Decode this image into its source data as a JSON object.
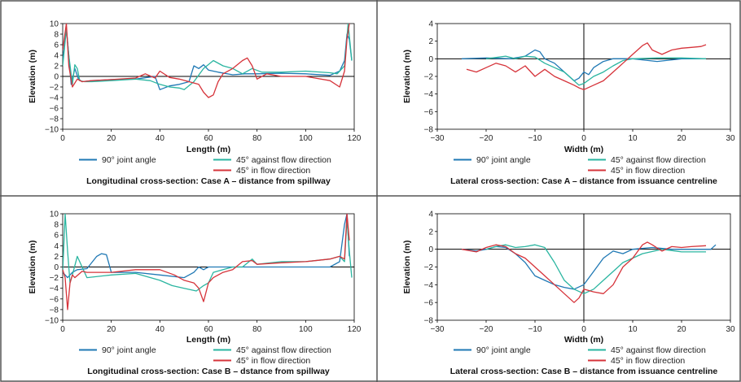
{
  "colors": {
    "series_90": "#1f78b4",
    "series_45_against": "#2ab5a0",
    "series_45_in": "#d6333a",
    "axis": "#000000",
    "frame": "#555555"
  },
  "legend_labels": [
    "90° joint angle",
    "45° against flow direction",
    "45° in flow direction"
  ],
  "chart_data": [
    {
      "type": "line",
      "title": "Longitudinal cross-section: Case A – distance from spillway",
      "xlabel": "Length (m)",
      "ylabel": "Elevation (m)",
      "xlim": [
        0,
        120
      ],
      "ylim": [
        -10,
        10
      ],
      "xticks": [
        0,
        20,
        40,
        60,
        80,
        100,
        120
      ],
      "yticks": [
        -10,
        -8,
        -6,
        -4,
        -2,
        0,
        2,
        4,
        6,
        8,
        10
      ],
      "legend": "bottom",
      "series": [
        {
          "name": "90° joint angle",
          "color": "#1f78b4",
          "x": [
            0,
            1.5,
            2.5,
            3.5,
            5,
            6.5,
            8,
            12,
            20,
            30,
            38,
            40,
            44,
            48,
            52,
            54,
            56,
            58,
            60,
            64,
            70,
            75,
            80,
            90,
            100,
            110,
            114,
            116,
            117,
            118,
            119
          ],
          "y": [
            3,
            9,
            4,
            -1.5,
            1.5,
            -0.5,
            -1,
            -0.8,
            -0.6,
            -0.5,
            0,
            -2.5,
            -1.8,
            -1.5,
            -1,
            2,
            1.5,
            2.2,
            1.2,
            0.8,
            0.3,
            0.5,
            0.5,
            0.6,
            0.5,
            0.2,
            1,
            3,
            8,
            7,
            3
          ]
        },
        {
          "name": "45° against flow direction",
          "color": "#2ab5a0",
          "x": [
            0,
            1.5,
            2.5,
            4,
            5,
            6,
            7,
            9,
            12,
            20,
            30,
            36,
            40,
            44,
            48,
            50,
            54,
            58,
            62,
            66,
            70,
            74,
            78,
            82,
            90,
            100,
            110,
            113,
            116,
            117.5,
            119
          ],
          "y": [
            2,
            9,
            4,
            -1.5,
            2.2,
            1.5,
            -0.8,
            -1,
            -1,
            -0.8,
            -0.5,
            -0.8,
            -1.5,
            -2,
            -2.2,
            -2.5,
            -1,
            1.5,
            3,
            2,
            1.5,
            0.5,
            1.5,
            0.8,
            0.8,
            1,
            0.7,
            0.5,
            2,
            10,
            3
          ]
        },
        {
          "name": "45° in flow direction",
          "color": "#d6333a",
          "x": [
            0,
            1.5,
            2.5,
            4,
            6,
            8,
            12,
            20,
            30,
            34,
            38,
            40,
            44,
            48,
            52,
            56,
            58,
            60,
            62,
            64,
            66,
            70,
            74,
            76,
            78,
            80,
            84,
            90,
            100,
            110,
            114,
            116,
            117,
            118
          ],
          "y": [
            5,
            10,
            2,
            -2,
            -0.5,
            -1,
            -0.8,
            -0.6,
            -0.3,
            0.5,
            -0.3,
            1,
            -0.2,
            -0.5,
            -1,
            -1.5,
            -3,
            -4,
            -3.5,
            -1,
            0.5,
            1.5,
            3,
            3.5,
            2,
            -0.5,
            0.5,
            0,
            0,
            -0.8,
            -2,
            1,
            7,
            10
          ]
        }
      ]
    },
    {
      "type": "line",
      "title": "Lateral cross-section: Case A – distance from issuance centreline",
      "xlabel": "Width (m)",
      "ylabel": "Elevation (m)",
      "xlim": [
        -30,
        30
      ],
      "ylim": [
        -8,
        4
      ],
      "xticks": [
        -30,
        -20,
        -10,
        0,
        10,
        20,
        30
      ],
      "yticks": [
        -8,
        -6,
        -4,
        -2,
        0,
        2,
        4
      ],
      "legend": "bottom",
      "series": [
        {
          "name": "90° joint angle",
          "color": "#1f78b4",
          "x": [
            -25,
            -20,
            -15,
            -12,
            -10,
            -9,
            -8,
            -6,
            -4,
            -2,
            -1,
            0,
            1,
            2,
            4,
            6,
            8,
            10,
            15,
            20,
            25
          ],
          "y": [
            0,
            0.1,
            0,
            0.3,
            1,
            0.8,
            0,
            -0.5,
            -1.5,
            -2.5,
            -2.2,
            -1.5,
            -1.8,
            -1,
            -0.3,
            0,
            0,
            0,
            -0.3,
            0,
            0
          ]
        },
        {
          "name": "45° against flow direction",
          "color": "#2ab5a0",
          "x": [
            -20,
            -16,
            -14,
            -12,
            -10,
            -8,
            -6,
            -4,
            -2,
            -1,
            0,
            2,
            4,
            6,
            8,
            10,
            15,
            20,
            25
          ],
          "y": [
            0,
            0.3,
            0,
            0.3,
            0.2,
            -0.5,
            -1,
            -1.5,
            -2.5,
            -3,
            -2.8,
            -2,
            -1.5,
            -0.8,
            -0.2,
            0,
            0.1,
            0.1,
            0
          ]
        },
        {
          "name": "45° in flow direction",
          "color": "#d6333a",
          "x": [
            -24,
            -22,
            -20,
            -18,
            -16,
            -14,
            -12,
            -10,
            -8,
            -6,
            -4,
            -2,
            -1,
            0,
            2,
            4,
            6,
            8,
            10,
            12,
            13,
            14,
            16,
            18,
            20,
            22,
            24,
            25
          ],
          "y": [
            -1.2,
            -1.5,
            -1,
            -0.5,
            -0.8,
            -1.5,
            -0.8,
            -2,
            -1.2,
            -2,
            -2.5,
            -3,
            -3.3,
            -3.5,
            -3,
            -2.5,
            -1.5,
            -0.5,
            0.5,
            1.5,
            1.8,
            1,
            0.5,
            1,
            1.2,
            1.3,
            1.4,
            1.6
          ]
        }
      ]
    },
    {
      "type": "line",
      "title": "Longitudinal cross-section: Case B – dstance from spillway",
      "xlabel": "Length (m)",
      "ylabel": "Elevation (m)",
      "xlim": [
        0,
        120
      ],
      "ylim": [
        -10,
        10
      ],
      "xticks": [
        0,
        20,
        40,
        60,
        80,
        100,
        120
      ],
      "yticks": [
        -10,
        -8,
        -6,
        -4,
        -2,
        0,
        2,
        4,
        6,
        8,
        10
      ],
      "legend": "bottom",
      "series": [
        {
          "name": "90° joint angle",
          "color": "#1f78b4",
          "x": [
            0,
            2,
            4,
            6,
            10,
            14,
            16,
            18,
            20,
            30,
            40,
            50,
            54,
            56,
            58,
            60,
            70,
            80,
            90,
            100,
            110,
            114,
            116,
            117,
            118
          ],
          "y": [
            -1,
            -2,
            -1,
            -0.5,
            -0.3,
            2,
            2.5,
            2.3,
            -1,
            -1,
            -1.5,
            -2,
            -1,
            0,
            -0.5,
            0,
            0,
            0,
            0,
            0,
            0,
            1,
            8,
            10,
            2
          ]
        },
        {
          "name": "45° against flow direction",
          "color": "#2ab5a0",
          "x": [
            0,
            1,
            2,
            3,
            4,
            6,
            10,
            20,
            30,
            40,
            45,
            50,
            55,
            58,
            60,
            62,
            66,
            70,
            74,
            78,
            80,
            90,
            100,
            110,
            114,
            116,
            117,
            118,
            119
          ],
          "y": [
            -1,
            10,
            3,
            -3,
            -1.5,
            2,
            -2,
            -1.5,
            -1.2,
            -2.5,
            -3.5,
            -4,
            -4.5,
            -3.5,
            -3,
            -1,
            -0.5,
            0,
            0,
            1.5,
            0.5,
            1,
            1,
            1.5,
            2,
            1,
            9,
            3,
            -2
          ]
        },
        {
          "name": "45° in flow direction",
          "color": "#d6333a",
          "x": [
            0,
            1,
            2,
            3,
            4,
            5,
            8,
            10,
            20,
            30,
            40,
            46,
            50,
            54,
            56,
            58,
            60,
            62,
            66,
            70,
            74,
            78,
            80,
            90,
            100,
            110,
            114,
            116,
            117,
            118
          ],
          "y": [
            -0.5,
            -2,
            -8,
            -3,
            -1.5,
            -2,
            -0.8,
            -1,
            -1,
            -0.5,
            -0.5,
            -1.5,
            -2.5,
            -3,
            -4,
            -6.5,
            -3,
            -2,
            -1,
            -0.5,
            1,
            1.2,
            0.5,
            0.8,
            1,
            1.5,
            2,
            1.5,
            10,
            5
          ]
        }
      ]
    },
    {
      "type": "line",
      "title": "Lateral cross-section: Case B – distance from issuance centreline",
      "xlabel": "Width (m)",
      "ylabel": "Elevation (m)",
      "xlim": [
        -30,
        30
      ],
      "ylim": [
        -8,
        4
      ],
      "xticks": [
        -30,
        -20,
        -10,
        0,
        10,
        20,
        30
      ],
      "yticks": [
        -8,
        -6,
        -4,
        -2,
        0,
        2,
        4
      ],
      "legend": "bottom",
      "series": [
        {
          "name": "90° joint angle",
          "color": "#1f78b4",
          "x": [
            -25,
            -22,
            -20,
            -18,
            -16,
            -14,
            -12,
            -10,
            -8,
            -6,
            -4,
            -2,
            0,
            2,
            4,
            6,
            8,
            10,
            14,
            18,
            22,
            26,
            27
          ],
          "y": [
            0,
            -0.2,
            0,
            0.3,
            0.2,
            -0.5,
            -1.5,
            -3,
            -3.5,
            -4,
            -4.3,
            -4.5,
            -4,
            -2.5,
            -1,
            -0.2,
            -0.5,
            0,
            0.2,
            0,
            0,
            0,
            0.5
          ]
        },
        {
          "name": "45° against flow direction",
          "color": "#2ab5a0",
          "x": [
            -20,
            -18,
            -16,
            -14,
            -12,
            -10,
            -8,
            -6,
            -4,
            -2,
            0,
            2,
            4,
            6,
            8,
            10,
            12,
            16,
            20,
            25
          ],
          "y": [
            0,
            0.3,
            0.5,
            0.2,
            0.3,
            0.5,
            0.2,
            -1.5,
            -3.5,
            -4.5,
            -5,
            -4.5,
            -3.5,
            -2.5,
            -1.5,
            -1,
            -0.5,
            0,
            -0.3,
            -0.3
          ]
        },
        {
          "name": "45° in flow direction",
          "color": "#d6333a",
          "x": [
            -25,
            -22,
            -20,
            -18,
            -16,
            -14,
            -12,
            -10,
            -8,
            -6,
            -4,
            -2,
            -1,
            0,
            2,
            4,
            6,
            8,
            10,
            12,
            13,
            14,
            16,
            18,
            20,
            22,
            25
          ],
          "y": [
            0,
            -0.3,
            0.2,
            0.5,
            0.3,
            -0.5,
            -1,
            -2,
            -3,
            -4,
            -5,
            -6,
            -5.5,
            -4.5,
            -4.8,
            -5,
            -4,
            -2,
            -1,
            0.5,
            0.8,
            0.5,
            -0.2,
            0.3,
            0.2,
            0.3,
            0.4
          ]
        }
      ]
    }
  ]
}
